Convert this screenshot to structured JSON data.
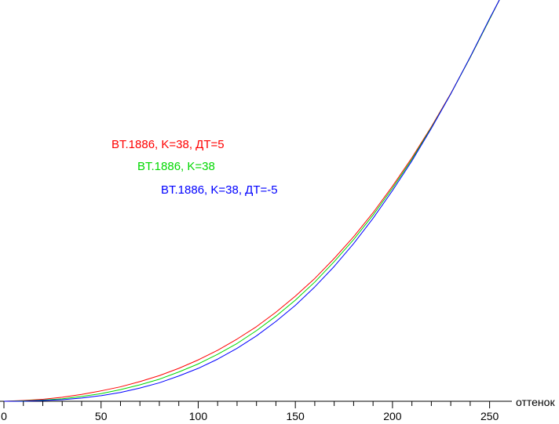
{
  "chart_data": {
    "type": "line",
    "title": "",
    "xlabel": "оттенок",
    "ylabel": "",
    "xlim": [
      0,
      255
    ],
    "ylim": [
      0,
      1
    ],
    "grid": false,
    "legend_position": "upper-left, inside plot",
    "x_ticks": [
      0,
      50,
      100,
      150,
      200,
      250
    ],
    "series": [
      {
        "name": "BT.1886, K=38, ДТ=5",
        "color": "#ff0000",
        "x": [
          0,
          10,
          20,
          30,
          40,
          50,
          60,
          70,
          80,
          90,
          100,
          110,
          120,
          130,
          140,
          150,
          160,
          170,
          180,
          190,
          200,
          210,
          220,
          230,
          240,
          250,
          255
        ],
        "y": [
          0.0,
          0.002,
          0.005,
          0.01,
          0.017,
          0.026,
          0.036,
          0.049,
          0.064,
          0.082,
          0.103,
          0.127,
          0.155,
          0.186,
          0.222,
          0.262,
          0.306,
          0.356,
          0.41,
          0.47,
          0.536,
          0.607,
          0.684,
          0.767,
          0.857,
          0.952,
          1.0
        ]
      },
      {
        "name": "BT.1886, K=38",
        "color": "#00d800",
        "x": [
          0,
          10,
          20,
          30,
          40,
          50,
          60,
          70,
          80,
          90,
          100,
          110,
          120,
          130,
          140,
          150,
          160,
          170,
          180,
          190,
          200,
          210,
          220,
          230,
          240,
          250,
          255
        ],
        "y": [
          0.0,
          0.001,
          0.003,
          0.006,
          0.012,
          0.019,
          0.029,
          0.041,
          0.055,
          0.073,
          0.093,
          0.117,
          0.144,
          0.176,
          0.212,
          0.252,
          0.297,
          0.348,
          0.403,
          0.464,
          0.531,
          0.603,
          0.682,
          0.766,
          0.857,
          0.952,
          1.0
        ]
      },
      {
        "name": "BT.1886, K=38, ДТ=-5",
        "color": "#0000ff",
        "x": [
          0,
          10,
          20,
          30,
          40,
          50,
          60,
          70,
          80,
          90,
          100,
          110,
          120,
          130,
          140,
          150,
          160,
          170,
          180,
          190,
          200,
          210,
          220,
          230,
          240,
          250,
          255
        ],
        "y": [
          0.0,
          0.0,
          0.002,
          0.004,
          0.008,
          0.014,
          0.022,
          0.033,
          0.046,
          0.063,
          0.082,
          0.105,
          0.132,
          0.163,
          0.199,
          0.239,
          0.285,
          0.336,
          0.393,
          0.456,
          0.525,
          0.599,
          0.68,
          0.766,
          0.858,
          0.954,
          1.0
        ]
      }
    ]
  }
}
